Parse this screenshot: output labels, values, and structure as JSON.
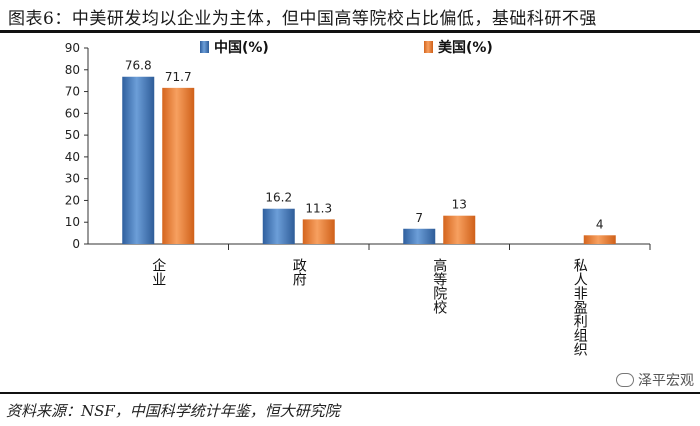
{
  "figure": {
    "title": "图表6：中美研发均以企业为主体，但中国高等院校占比偏低，基础科研不强",
    "source": "资料来源：NSF，中国科学统计年鉴，恒大研究院",
    "watermark": "泽平宏观"
  },
  "chart_data": {
    "type": "bar",
    "categories": [
      "企业",
      "政府",
      "高等院校",
      "私人非盈利组织"
    ],
    "series": [
      {
        "name": "中国(%)",
        "values": [
          76.8,
          16.2,
          7,
          null
        ],
        "labels": [
          "76.8",
          "16.2",
          "7",
          ""
        ],
        "color": "#4a7fc1"
      },
      {
        "name": "美国(%)",
        "values": [
          71.7,
          11.3,
          13,
          4
        ],
        "labels": [
          "71.7",
          "11.3",
          "13",
          "4"
        ],
        "color": "#f0883e"
      }
    ],
    "ylim": [
      0,
      90
    ],
    "yticks": [
      0,
      10,
      20,
      30,
      40,
      50,
      60,
      70,
      80,
      90
    ],
    "legend_position": "top",
    "grid": false
  }
}
